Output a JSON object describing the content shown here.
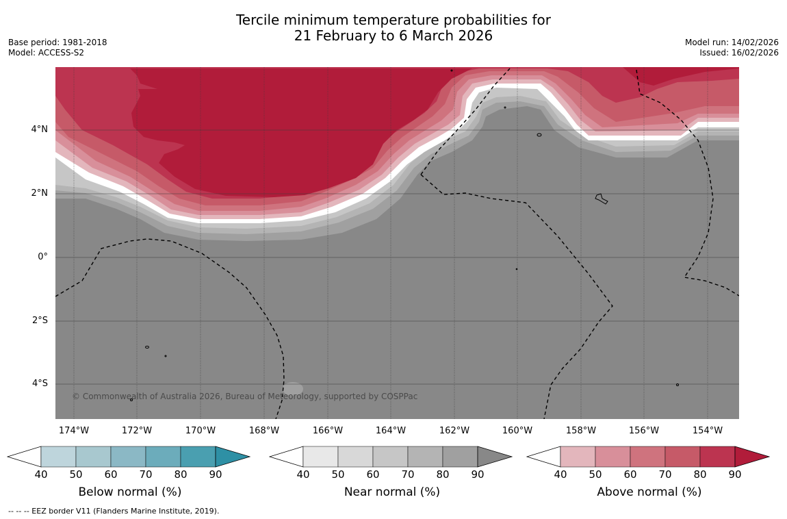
{
  "title_line1": "Tercile minimum temperature probabilities for",
  "title_line2": "21 February to 6 March 2026",
  "base_period": "Base period: 1981-2018",
  "model": "Model: ACCESS-S2",
  "model_run": "Model run: 14/02/2026",
  "issued": "Issued: 16/02/2026",
  "copyright": "© Commonwealth of Australia 2026, Bureau of Meteorology, supported by COSPPac",
  "footnote": "--  --  -- EEZ border V11 (Flanders Marine Institute, 2019).",
  "lat_labels": [
    "4°N",
    "2°N",
    "0°",
    "2°S",
    "4°S"
  ],
  "lon_labels": [
    "174°W",
    "172°W",
    "170°W",
    "168°W",
    "166°W",
    "164°W",
    "162°W",
    "160°W",
    "158°W",
    "156°W",
    "154°W"
  ],
  "colorbars": [
    {
      "title": "Below normal (%)",
      "ticks": [
        "40",
        "50",
        "60",
        "70",
        "80",
        "90"
      ],
      "colors": [
        "#bed5dc",
        "#a8c8cf",
        "#8bb8c5",
        "#6cacbb",
        "#4a9fb0",
        "#2e90a5"
      ]
    },
    {
      "title": "Near normal (%)",
      "ticks": [
        "40",
        "50",
        "60",
        "70",
        "80",
        "90"
      ],
      "colors": [
        "#e8e8e8",
        "#d8d8d8",
        "#c6c6c6",
        "#b4b4b4",
        "#a0a0a0",
        "#888888"
      ]
    },
    {
      "title": "Above normal (%)",
      "ticks": [
        "40",
        "50",
        "60",
        "70",
        "80",
        "90"
      ],
      "colors": [
        "#e3b6bc",
        "#d88f9a",
        "#cf737e",
        "#c65a68",
        "#bc3450",
        "#b11c3a"
      ]
    }
  ]
}
